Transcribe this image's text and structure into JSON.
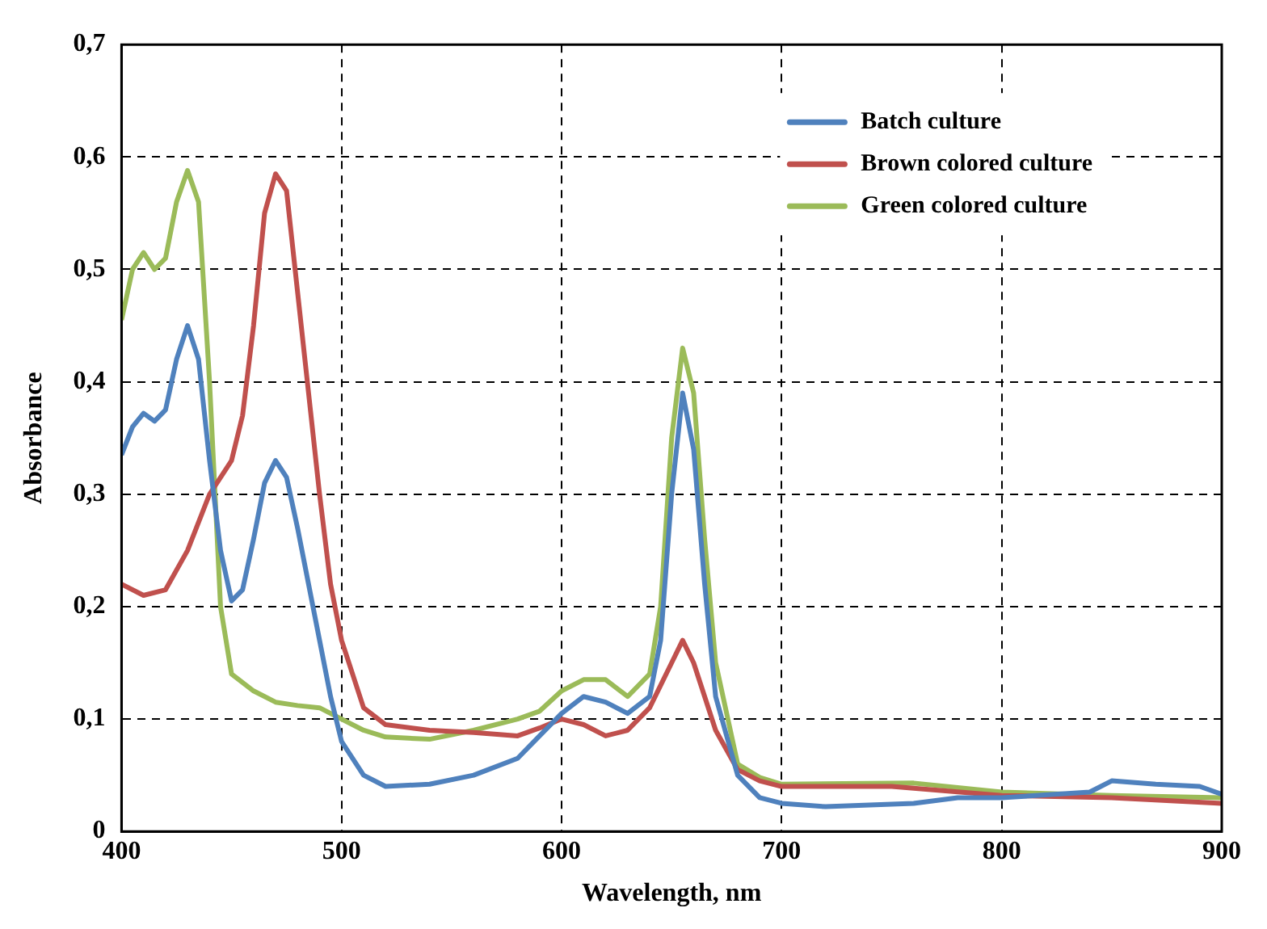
{
  "chart_data": {
    "type": "line",
    "xlabel": "Wavelength, nm",
    "ylabel": "Absorbance",
    "xlim": [
      400,
      900
    ],
    "xticks": [
      400,
      500,
      600,
      700,
      800,
      900
    ],
    "ylim": [
      0,
      0.7
    ],
    "yticks": [
      {
        "value": 0,
        "label": "0"
      },
      {
        "value": 0.1,
        "label": "0,1"
      },
      {
        "value": 0.2,
        "label": "0,2"
      },
      {
        "value": 0.3,
        "label": "0,3"
      },
      {
        "value": 0.4,
        "label": "0,4"
      },
      {
        "value": 0.5,
        "label": "0,5"
      },
      {
        "value": 0.6,
        "label": "0,6"
      },
      {
        "value": 0.7,
        "label": "0,7"
      }
    ],
    "grid": true,
    "legend": "top right",
    "marker": "none",
    "line_style": "solid",
    "series": [
      {
        "name": "Batch culture",
        "color": "#4f81bd",
        "x": [
          400,
          405,
          410,
          415,
          420,
          425,
          430,
          435,
          440,
          445,
          450,
          455,
          460,
          465,
          470,
          475,
          480,
          485,
          490,
          495,
          500,
          510,
          520,
          540,
          560,
          580,
          590,
          600,
          610,
          620,
          630,
          640,
          645,
          650,
          655,
          660,
          665,
          670,
          680,
          690,
          700,
          720,
          760,
          780,
          800,
          840,
          850,
          870,
          890,
          900
        ],
        "values": [
          0.335,
          0.36,
          0.372,
          0.365,
          0.375,
          0.42,
          0.45,
          0.42,
          0.33,
          0.25,
          0.205,
          0.215,
          0.26,
          0.31,
          0.33,
          0.315,
          0.27,
          0.22,
          0.17,
          0.12,
          0.08,
          0.05,
          0.04,
          0.042,
          0.05,
          0.065,
          0.085,
          0.105,
          0.12,
          0.115,
          0.105,
          0.12,
          0.17,
          0.3,
          0.39,
          0.34,
          0.22,
          0.12,
          0.05,
          0.03,
          0.025,
          0.022,
          0.025,
          0.03,
          0.03,
          0.035,
          0.045,
          0.042,
          0.04,
          0.033
        ]
      },
      {
        "name": "Brown colored culture",
        "color": "#c0504d",
        "x": [
          400,
          410,
          420,
          430,
          440,
          450,
          455,
          460,
          465,
          470,
          475,
          480,
          485,
          490,
          495,
          500,
          510,
          520,
          540,
          560,
          580,
          590,
          600,
          610,
          620,
          630,
          640,
          650,
          655,
          660,
          670,
          680,
          690,
          700,
          750,
          800,
          850,
          900
        ],
        "values": [
          0.22,
          0.21,
          0.215,
          0.25,
          0.3,
          0.33,
          0.37,
          0.45,
          0.55,
          0.585,
          0.57,
          0.48,
          0.39,
          0.3,
          0.22,
          0.17,
          0.11,
          0.095,
          0.09,
          0.088,
          0.085,
          0.092,
          0.1,
          0.095,
          0.085,
          0.09,
          0.11,
          0.15,
          0.17,
          0.15,
          0.09,
          0.055,
          0.045,
          0.04,
          0.04,
          0.032,
          0.03,
          0.025
        ]
      },
      {
        "name": "Green colored culture",
        "color": "#9bbb59",
        "x": [
          400,
          405,
          410,
          415,
          420,
          425,
          430,
          435,
          440,
          445,
          450,
          460,
          470,
          480,
          490,
          500,
          510,
          520,
          540,
          560,
          580,
          590,
          600,
          610,
          620,
          630,
          640,
          645,
          650,
          655,
          660,
          665,
          670,
          680,
          690,
          700,
          760,
          800,
          850,
          900
        ],
        "values": [
          0.455,
          0.5,
          0.515,
          0.5,
          0.51,
          0.56,
          0.588,
          0.56,
          0.4,
          0.2,
          0.14,
          0.125,
          0.115,
          0.112,
          0.11,
          0.1,
          0.09,
          0.084,
          0.082,
          0.09,
          0.1,
          0.107,
          0.125,
          0.135,
          0.135,
          0.12,
          0.14,
          0.2,
          0.35,
          0.43,
          0.39,
          0.26,
          0.15,
          0.06,
          0.048,
          0.042,
          0.043,
          0.035,
          0.032,
          0.03
        ]
      }
    ]
  }
}
